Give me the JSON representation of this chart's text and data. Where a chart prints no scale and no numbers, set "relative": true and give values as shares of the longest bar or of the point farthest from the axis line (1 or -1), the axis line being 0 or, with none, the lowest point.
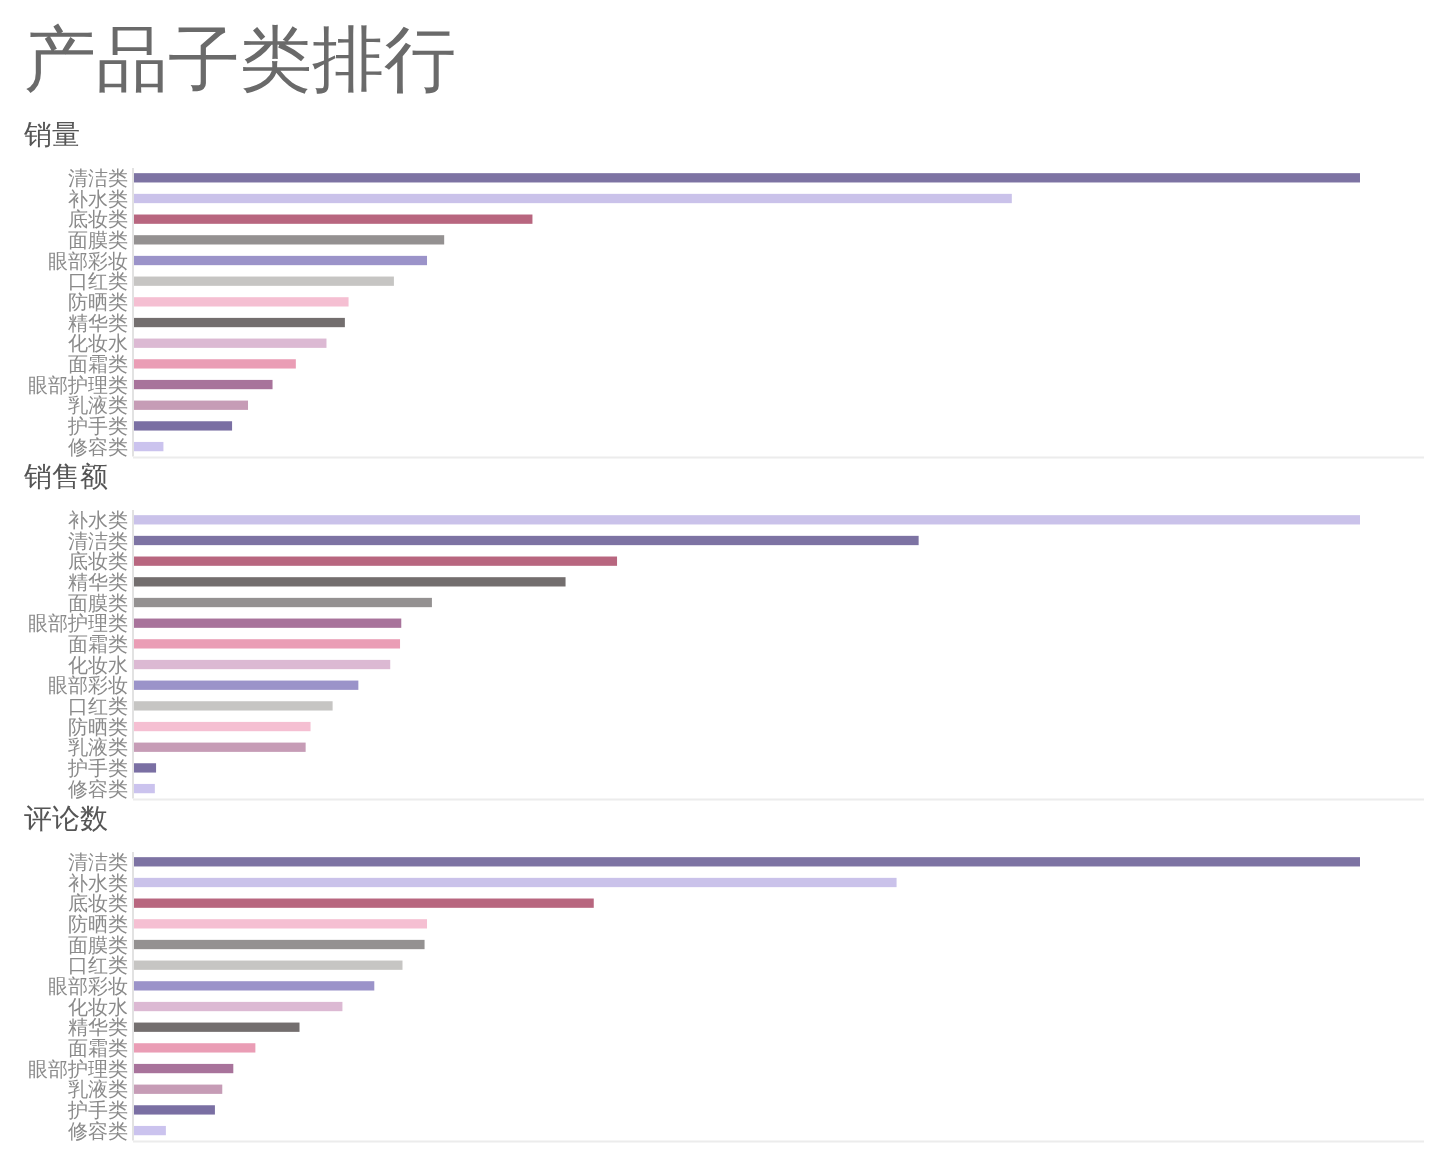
{
  "chart_data": [
    {
      "type": "bar",
      "orientation": "horizontal",
      "relative": true,
      "title": "产品子类排行",
      "subtitle": "销量",
      "categories": [
        "清洁类",
        "补水类",
        "底妆类",
        "面膜类",
        "眼部彩妆",
        "口红类",
        "防晒类",
        "精华类",
        "化妆水",
        "面霜类",
        "眼部护理类",
        "乳液类",
        "护手类",
        "修容类"
      ],
      "values": [
        1,
        0.716,
        0.325,
        0.253,
        0.239,
        0.212,
        0.175,
        0.172,
        0.157,
        0.132,
        0.113,
        0.093,
        0.08,
        0.024
      ],
      "colors": [
        "#7d73a3",
        "#cac2ea",
        "#b8667f",
        "#949191",
        "#9b93c9",
        "#c6c5c3",
        "#f5bfd2",
        "#736e6e",
        "#dcb9d3",
        "#ea9db5",
        "#a8739b",
        "#c69cb6",
        "#7a6fa3",
        "#cbc3ee"
      ]
    },
    {
      "type": "bar",
      "orientation": "horizontal",
      "relative": true,
      "subtitle": "销售额",
      "categories": [
        "补水类",
        "清洁类",
        "底妆类",
        "精华类",
        "面膜类",
        "眼部护理类",
        "面霜类",
        "化妆水",
        "眼部彩妆",
        "口红类",
        "防晒类",
        "乳液类",
        "护手类",
        "修容类"
      ],
      "values": [
        1,
        0.64,
        0.394,
        0.352,
        0.243,
        0.218,
        0.217,
        0.209,
        0.183,
        0.162,
        0.144,
        0.14,
        0.018,
        0.017
      ],
      "colors": [
        "#cac2ea",
        "#7d73a3",
        "#b8667f",
        "#736e6e",
        "#949191",
        "#a8739b",
        "#ea9db5",
        "#dcb9d3",
        "#9b93c9",
        "#c6c5c3",
        "#f5bfd2",
        "#c69cb6",
        "#7a6fa3",
        "#cbc3ee"
      ]
    },
    {
      "type": "bar",
      "orientation": "horizontal",
      "relative": true,
      "subtitle": "评论数",
      "categories": [
        "清洁类",
        "补水类",
        "底妆类",
        "防晒类",
        "面膜类",
        "口红类",
        "眼部彩妆",
        "化妆水",
        "精华类",
        "面霜类",
        "眼部护理类",
        "乳液类",
        "护手类",
        "修容类"
      ],
      "values": [
        1,
        0.622,
        0.375,
        0.239,
        0.237,
        0.219,
        0.196,
        0.17,
        0.135,
        0.099,
        0.081,
        0.072,
        0.066,
        0.026
      ],
      "colors": [
        "#7d73a3",
        "#cac2ea",
        "#b8667f",
        "#f5bfd2",
        "#949191",
        "#c6c5c3",
        "#9b93c9",
        "#dcb9d3",
        "#736e6e",
        "#ea9db5",
        "#a8739b",
        "#c69cb6",
        "#7a6fa3",
        "#cbc3ee"
      ]
    }
  ]
}
